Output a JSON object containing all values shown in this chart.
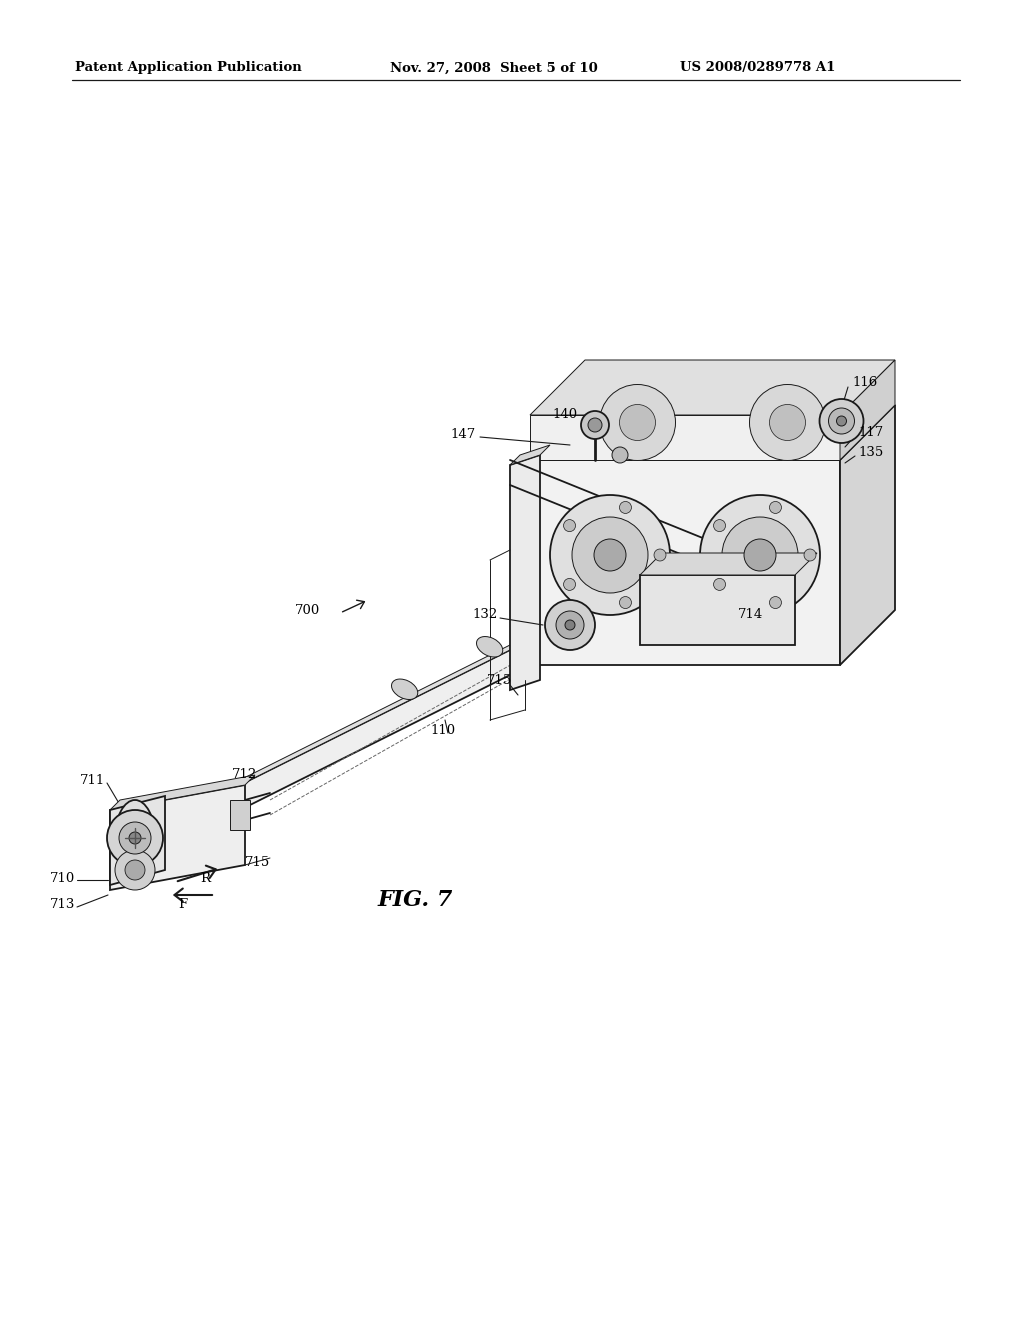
{
  "bg_color": "#ffffff",
  "header_left": "Patent Application Publication",
  "header_mid": "Nov. 27, 2008  Sheet 5 of 10",
  "header_right": "US 2008/0289778 A1",
  "fig_label": "FIG. 7",
  "lw_main": 1.3,
  "lw_thin": 0.7,
  "lw_med": 1.0,
  "fc_light": "#f5f5f5",
  "fc_mid": "#e0e0e0",
  "fc_dark": "#c8c8c8",
  "ec_main": "#1a1a1a"
}
